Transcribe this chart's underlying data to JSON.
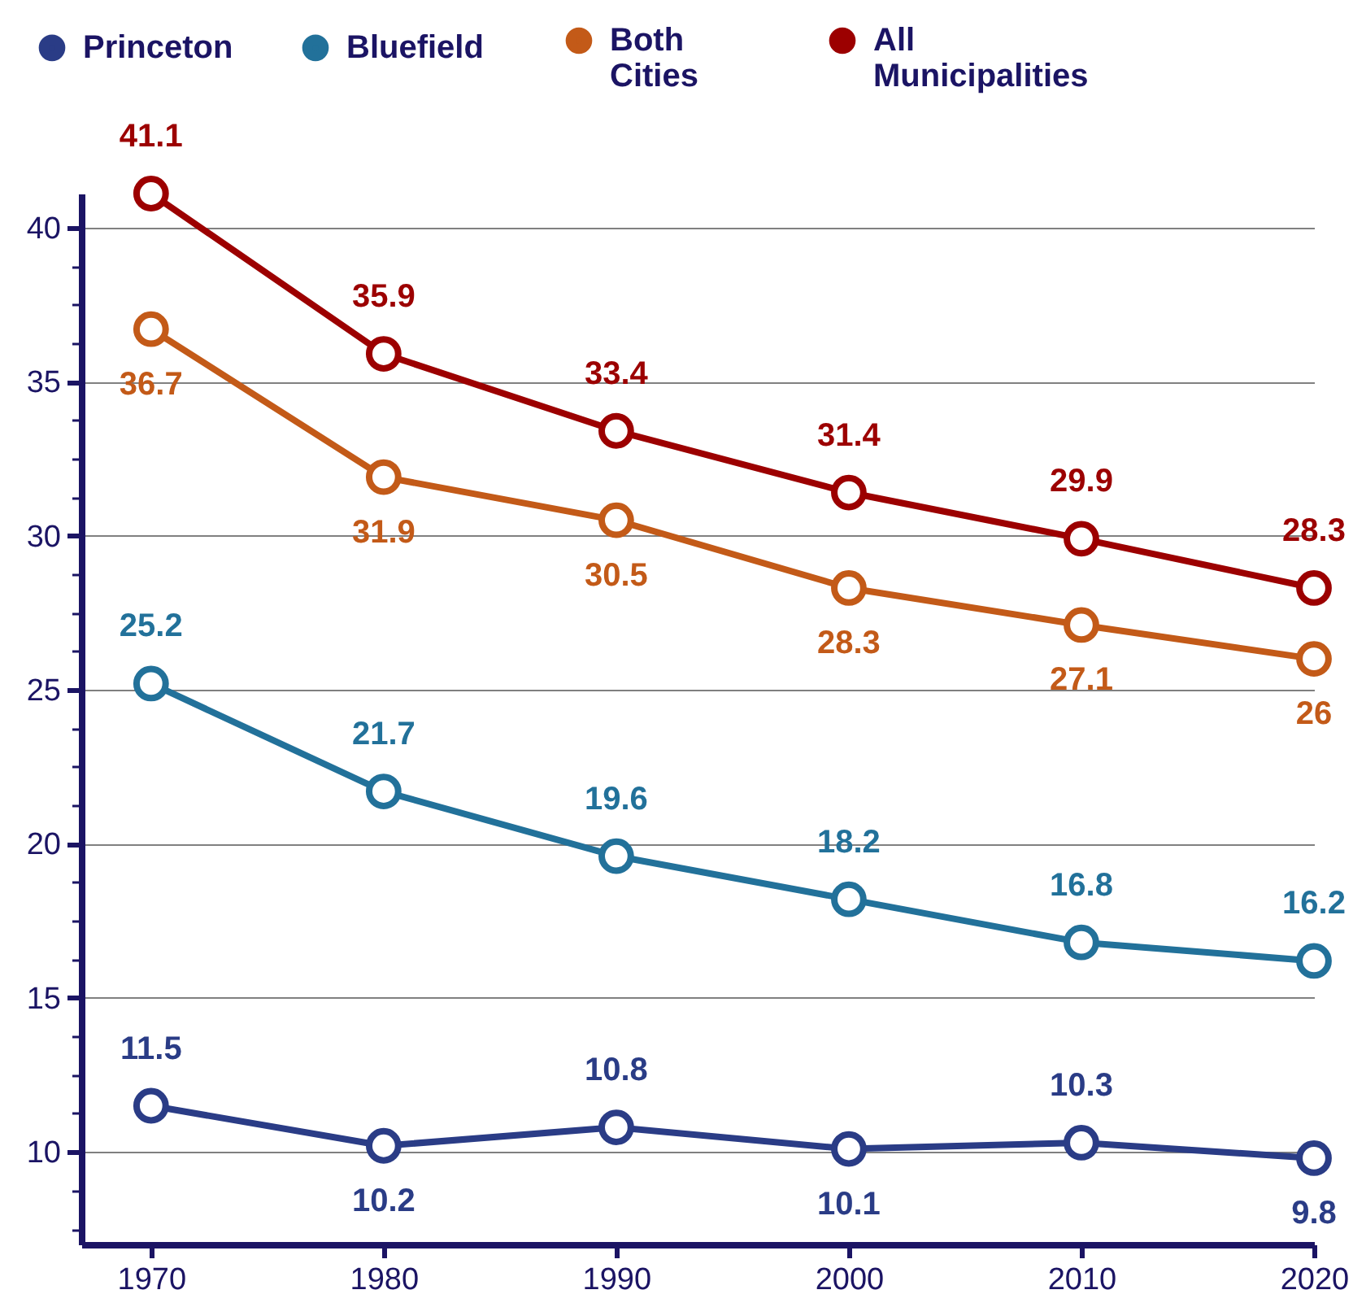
{
  "chart_data": {
    "type": "line",
    "x": [
      1970,
      1980,
      1990,
      2000,
      2010,
      2020
    ],
    "xlim": [
      1967,
      2020
    ],
    "xticks": [
      1970,
      1980,
      1990,
      2000,
      2010,
      2020
    ],
    "ylim": [
      7,
      41.1
    ],
    "yticks": [
      {
        "value": 7.5,
        "label": null
      },
      {
        "value": 8.75,
        "label": null
      },
      10,
      {
        "value": 11.25,
        "label": null
      },
      {
        "value": 12.5,
        "label": null
      },
      {
        "value": 13.75,
        "label": null
      },
      15,
      {
        "value": 16.25,
        "label": null
      },
      {
        "value": 17.5,
        "label": null
      },
      {
        "value": 18.75,
        "label": null
      },
      20,
      {
        "value": 21.25,
        "label": null
      },
      {
        "value": 22.5,
        "label": null
      },
      {
        "value": 23.75,
        "label": null
      },
      25,
      {
        "value": 26.25,
        "label": null
      },
      {
        "value": 27.5,
        "label": null
      },
      {
        "value": 28.75,
        "label": null
      },
      30,
      {
        "value": 31.25,
        "label": null
      },
      {
        "value": 32.5,
        "label": null
      },
      {
        "value": 33.75,
        "label": null
      },
      35,
      {
        "value": 36.25,
        "label": null
      },
      {
        "value": 37.5,
        "label": null
      },
      {
        "value": 38.75,
        "label": null
      },
      40
    ],
    "grid": "y",
    "legend": "top",
    "marker": "circle",
    "line_style": "solid",
    "data_labels": true,
    "series": [
      {
        "name": "Princeton",
        "color": "#2a3c86",
        "values": [
          11.5,
          10.2,
          10.8,
          10.1,
          10.3,
          9.8
        ]
      },
      {
        "name": "Bluefield",
        "color": "#22719a",
        "values": [
          25.2,
          21.7,
          19.6,
          18.2,
          16.8,
          16.2
        ]
      },
      {
        "name": "Both Cities",
        "color": "#c35a18",
        "values": [
          36.7,
          31.9,
          30.5,
          28.3,
          27.1,
          26
        ]
      },
      {
        "name": "All Municipalities",
        "color": "#9c0000",
        "values": [
          41.1,
          35.9,
          33.4,
          31.4,
          29.9,
          28.3
        ]
      }
    ]
  }
}
